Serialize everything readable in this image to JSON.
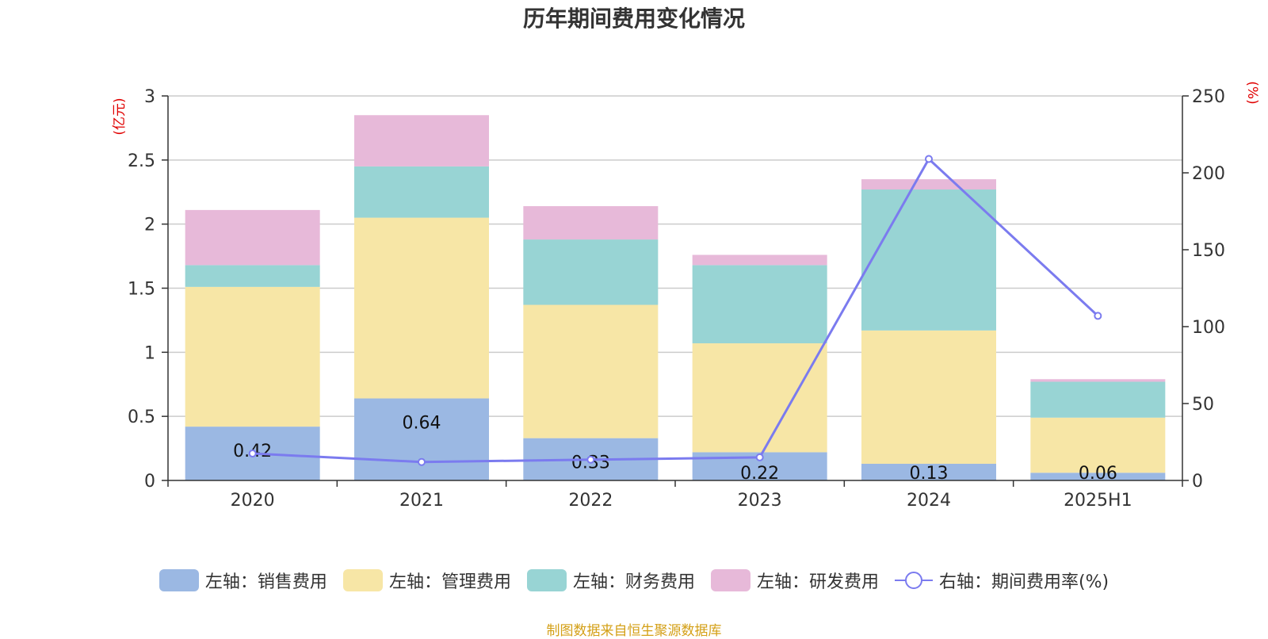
{
  "title": "历年期间费用变化情况",
  "source_note": "制图数据来自恒生聚源数据库",
  "colors": {
    "sales": "#9bb8e3",
    "admin": "#f7e6a6",
    "finance": "#98d4d4",
    "rd": "#e7b9d9",
    "rate": "#7b7bef",
    "axis_unit": "#e00000"
  },
  "legend": [
    {
      "label": "左轴：销售费用",
      "icon": "bar-swatch"
    },
    {
      "label": "左轴：管理费用",
      "icon": "bar-swatch"
    },
    {
      "label": "左轴：财务费用",
      "icon": "bar-swatch"
    },
    {
      "label": "左轴：研发费用",
      "icon": "bar-swatch"
    },
    {
      "label": "右轴：期间费用率(%)",
      "icon": "line-circle-marker"
    }
  ],
  "chart_data": {
    "type": "bar",
    "stacked": true,
    "categories": [
      "2020",
      "2021",
      "2022",
      "2023",
      "2024",
      "2025H1"
    ],
    "series": [
      {
        "name": "左轴：销售费用",
        "values": [
          0.42,
          0.64,
          0.33,
          0.22,
          0.13,
          0.06
        ],
        "axis": "left"
      },
      {
        "name": "左轴：管理费用",
        "values": [
          1.09,
          1.41,
          1.04,
          0.85,
          1.04,
          0.43
        ],
        "axis": "left"
      },
      {
        "name": "左轴：财务费用",
        "values": [
          0.17,
          0.4,
          0.51,
          0.61,
          1.1,
          0.28
        ],
        "axis": "left"
      },
      {
        "name": "左轴：研发费用",
        "values": [
          0.43,
          0.4,
          0.26,
          0.08,
          0.08,
          0.02
        ],
        "axis": "left"
      },
      {
        "name": "右轴：期间费用率(%)",
        "type": "line",
        "values": [
          17.5,
          12,
          13.5,
          15,
          209,
          107
        ],
        "axis": "right"
      }
    ],
    "data_labels": [
      "0.42",
      "0.64",
      "0.33",
      "0.22",
      "0.13",
      "0.06"
    ],
    "y_left": {
      "unit": "(亿元)",
      "ylim": [
        0,
        3
      ],
      "ticks": [
        "0",
        "0.5",
        "1",
        "1.5",
        "2",
        "2.5",
        "3"
      ]
    },
    "y_right": {
      "unit": "(%)",
      "ylim": [
        0,
        250
      ],
      "ticks": [
        "0",
        "50",
        "100",
        "150",
        "200",
        "250"
      ]
    },
    "grid": true,
    "legend_position": "bottom"
  }
}
